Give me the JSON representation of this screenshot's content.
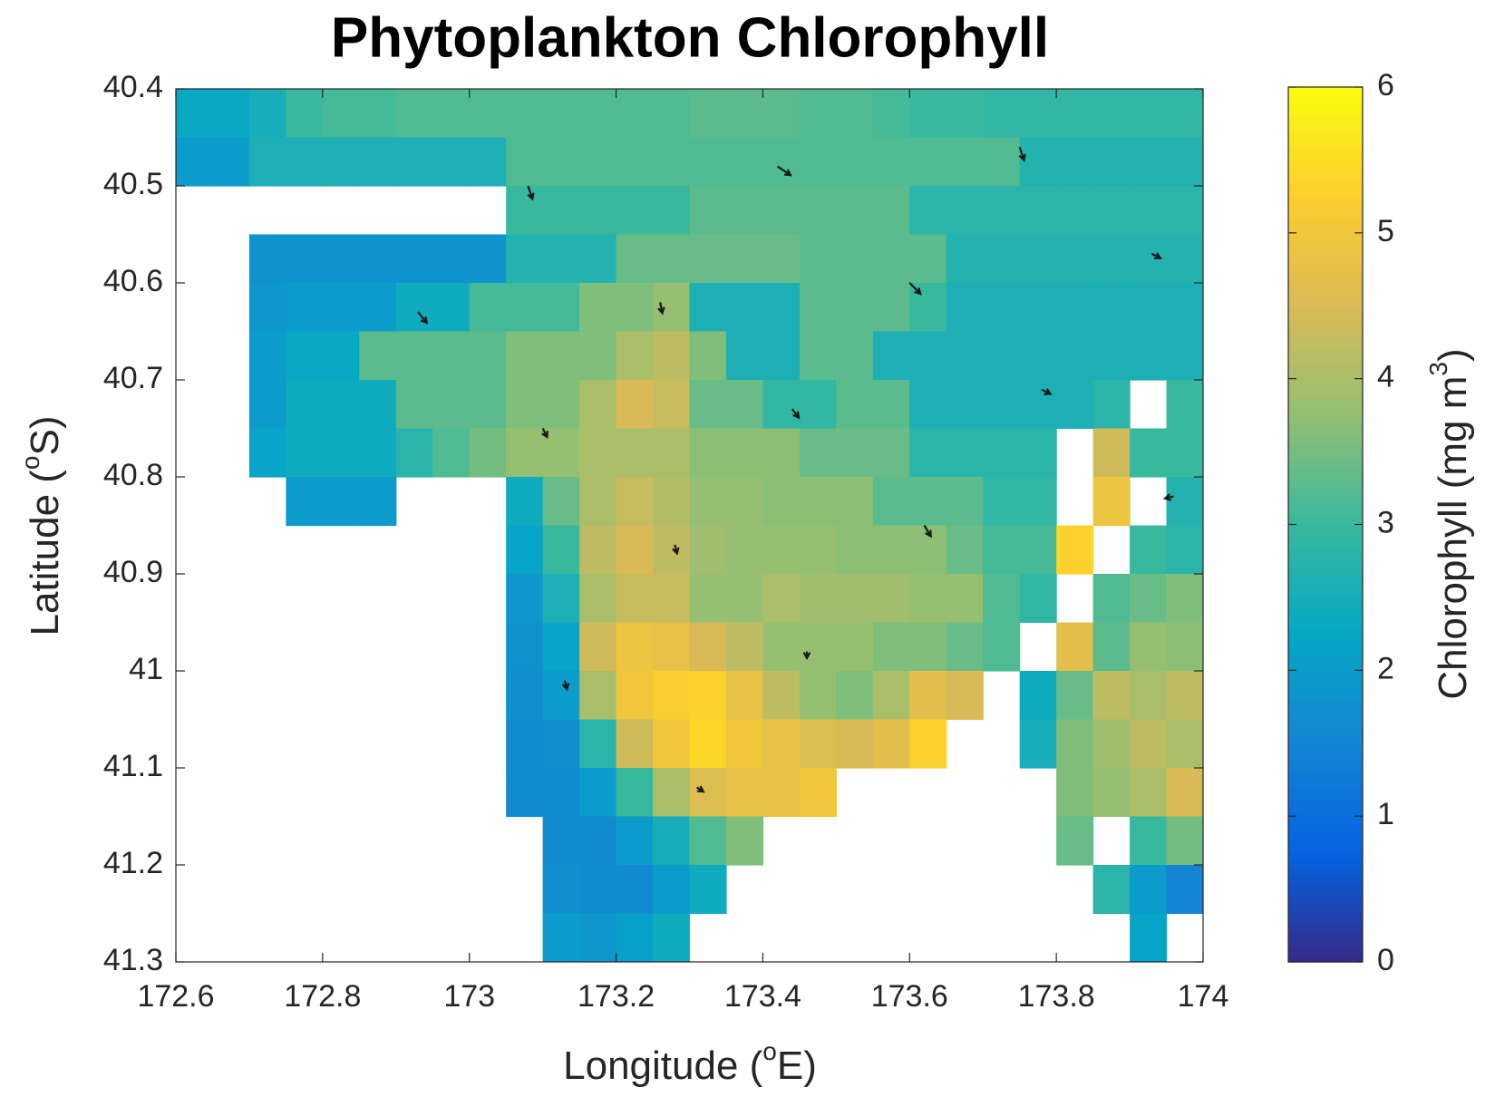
{
  "chart_data": {
    "type": "heatmap",
    "title": "Phytoplankton Chlorophyll",
    "xlabel": [
      "Longitude (",
      "o",
      "E)"
    ],
    "ylabel": [
      "Latitude (",
      "o",
      "S)"
    ],
    "colorbar_label": [
      "Chlorophyll (mg m",
      "3",
      ")"
    ],
    "x": [
      172.625,
      172.675,
      172.725,
      172.775,
      172.825,
      172.875,
      172.925,
      172.975,
      173.025,
      173.075,
      173.125,
      173.175,
      173.225,
      173.275,
      173.325,
      173.375,
      173.425,
      173.475,
      173.525,
      173.575,
      173.625,
      173.675,
      173.725,
      173.775,
      173.825,
      173.875,
      173.925,
      173.975
    ],
    "y": [
      40.425,
      40.475,
      40.525,
      40.575,
      40.625,
      40.675,
      40.725,
      40.775,
      40.825,
      40.875,
      40.925,
      40.975,
      41.025,
      41.075,
      41.125,
      41.175,
      41.225,
      41.275
    ],
    "values": [
      [
        2.3,
        2.3,
        2.5,
        3.0,
        3.1,
        3.1,
        3.2,
        3.2,
        3.2,
        3.2,
        3.2,
        3.2,
        3.2,
        3.2,
        3.3,
        3.3,
        3.3,
        3.2,
        3.2,
        3.1,
        3.0,
        3.0,
        2.9,
        2.9,
        2.9,
        2.9,
        2.9,
        2.9
      ],
      [
        2.0,
        2.0,
        2.6,
        2.6,
        2.6,
        2.6,
        2.6,
        2.6,
        2.6,
        3.2,
        3.2,
        3.2,
        3.2,
        3.2,
        3.2,
        3.2,
        3.2,
        3.2,
        3.2,
        3.2,
        3.2,
        3.2,
        3.2,
        2.7,
        2.7,
        2.7,
        2.7,
        2.7
      ],
      [
        null,
        null,
        null,
        null,
        null,
        null,
        null,
        null,
        null,
        3.0,
        3.0,
        3.0,
        3.0,
        3.0,
        3.3,
        3.3,
        3.3,
        3.3,
        3.3,
        3.3,
        2.8,
        2.8,
        2.8,
        2.8,
        2.8,
        2.8,
        2.8,
        2.8
      ],
      [
        null,
        null,
        1.8,
        1.8,
        1.8,
        1.8,
        1.8,
        1.8,
        1.8,
        2.7,
        2.7,
        2.7,
        3.4,
        3.4,
        3.4,
        3.4,
        3.4,
        3.3,
        3.3,
        3.3,
        3.3,
        2.7,
        2.7,
        2.7,
        2.7,
        2.7,
        2.7,
        2.7
      ],
      [
        null,
        null,
        1.9,
        2.0,
        2.0,
        2.0,
        2.4,
        2.4,
        3.1,
        3.1,
        3.1,
        3.6,
        3.6,
        3.8,
        2.6,
        2.6,
        2.6,
        3.3,
        3.3,
        3.3,
        3.0,
        2.6,
        2.6,
        2.6,
        2.6,
        2.6,
        2.6,
        2.6
      ],
      [
        null,
        null,
        2.0,
        2.3,
        2.3,
        3.3,
        3.3,
        3.3,
        3.3,
        3.6,
        3.6,
        3.6,
        4.0,
        4.2,
        3.6,
        2.6,
        2.6,
        3.3,
        3.3,
        2.6,
        2.6,
        2.6,
        2.6,
        2.6,
        2.6,
        2.6,
        2.6,
        2.6
      ],
      [
        null,
        null,
        2.0,
        2.4,
        2.4,
        2.4,
        3.3,
        3.3,
        3.3,
        3.6,
        3.6,
        4.0,
        4.5,
        4.3,
        3.4,
        3.4,
        2.9,
        2.9,
        3.3,
        3.3,
        2.6,
        2.6,
        2.6,
        2.6,
        2.6,
        2.8,
        null,
        3.0
      ],
      [
        null,
        null,
        2.2,
        2.4,
        2.4,
        2.4,
        2.8,
        3.2,
        3.5,
        3.8,
        3.8,
        4.0,
        4.0,
        4.0,
        3.7,
        3.7,
        3.7,
        3.4,
        3.4,
        3.4,
        2.8,
        2.8,
        2.8,
        2.8,
        null,
        4.4,
        3.0,
        3.0
      ],
      [
        null,
        null,
        null,
        2.0,
        2.0,
        2.0,
        null,
        null,
        null,
        2.4,
        3.4,
        4.0,
        4.3,
        4.1,
        3.8,
        3.8,
        3.7,
        3.7,
        3.7,
        3.3,
        3.3,
        3.3,
        2.9,
        2.9,
        null,
        4.9,
        null,
        2.7
      ],
      [
        null,
        null,
        null,
        null,
        null,
        null,
        null,
        null,
        null,
        2.2,
        3.0,
        4.2,
        4.5,
        4.2,
        3.9,
        3.8,
        3.8,
        3.8,
        3.7,
        3.7,
        3.7,
        3.4,
        3.1,
        3.1,
        5.3,
        null,
        3.0,
        2.8
      ],
      [
        null,
        null,
        null,
        null,
        null,
        null,
        null,
        null,
        null,
        1.9,
        2.6,
        4.0,
        4.3,
        4.3,
        3.8,
        3.8,
        4.0,
        3.9,
        3.9,
        3.9,
        3.8,
        3.8,
        3.2,
        2.9,
        null,
        3.2,
        3.4,
        3.6
      ],
      [
        null,
        null,
        null,
        null,
        null,
        null,
        null,
        null,
        null,
        1.8,
        2.2,
        4.4,
        4.9,
        4.8,
        4.5,
        4.2,
        3.8,
        3.8,
        3.8,
        3.6,
        3.6,
        3.4,
        3.2,
        null,
        4.7,
        3.3,
        3.8,
        3.7
      ],
      [
        null,
        null,
        null,
        null,
        null,
        null,
        null,
        null,
        null,
        1.7,
        2.0,
        4.0,
        5.0,
        5.2,
        5.3,
        4.8,
        4.2,
        3.8,
        3.6,
        4.0,
        4.7,
        4.5,
        null,
        2.4,
        3.4,
        4.2,
        4.0,
        4.2
      ],
      [
        null,
        null,
        null,
        null,
        null,
        null,
        null,
        null,
        null,
        1.6,
        1.7,
        2.8,
        4.4,
        5.0,
        5.4,
        5.0,
        4.8,
        4.6,
        4.5,
        4.7,
        5.3,
        null,
        null,
        2.5,
        3.6,
        3.9,
        4.2,
        4.0
      ],
      [
        null,
        null,
        null,
        null,
        null,
        null,
        null,
        null,
        null,
        1.6,
        1.6,
        2.0,
        3.0,
        4.0,
        4.6,
        4.8,
        4.8,
        5.0,
        null,
        null,
        null,
        null,
        null,
        null,
        3.6,
        3.8,
        4.0,
        4.5
      ],
      [
        null,
        null,
        null,
        null,
        null,
        null,
        null,
        null,
        null,
        null,
        1.6,
        1.6,
        2.0,
        2.5,
        3.2,
        3.6,
        null,
        null,
        null,
        null,
        null,
        null,
        null,
        null,
        3.4,
        null,
        3.0,
        3.5
      ],
      [
        null,
        null,
        null,
        null,
        null,
        null,
        null,
        null,
        null,
        null,
        1.7,
        1.6,
        1.6,
        2.0,
        2.4,
        null,
        null,
        null,
        null,
        null,
        null,
        null,
        null,
        null,
        null,
        2.8,
        2.0,
        1.5
      ],
      [
        null,
        null,
        null,
        null,
        null,
        null,
        null,
        null,
        null,
        null,
        2.0,
        1.9,
        2.1,
        2.4,
        null,
        null,
        null,
        null,
        null,
        null,
        null,
        null,
        null,
        null,
        null,
        null,
        2.2,
        null
      ]
    ],
    "xlim": [
      172.6,
      174
    ],
    "ylim": [
      40.4,
      41.3
    ],
    "xticks": [
      172.6,
      172.8,
      173,
      173.2,
      173.4,
      173.6,
      173.8,
      174
    ],
    "yticks": [
      40.4,
      40.5,
      40.6,
      40.7,
      40.8,
      40.9,
      41,
      41.1,
      41.2,
      41.3
    ],
    "clim": [
      0,
      6
    ],
    "cticks": [
      0,
      1,
      2,
      3,
      4,
      5,
      6
    ],
    "colormap": [
      "#352a87",
      "#0363e1",
      "#1485d4",
      "#06a7c6",
      "#38b99e",
      "#92bf73",
      "#d9ba56",
      "#fcce2e",
      "#f9fb0e"
    ],
    "quiver": {
      "x": [
        173.08,
        173.42,
        173.75,
        173.93,
        173.6,
        173.26,
        172.93,
        173.78,
        173.44,
        173.1,
        173.28,
        173.62,
        173.96,
        173.46,
        173.13,
        173.31
      ],
      "y": [
        40.5,
        40.48,
        40.46,
        40.57,
        40.6,
        40.62,
        40.63,
        40.71,
        40.73,
        40.75,
        40.87,
        40.85,
        40.82,
        40.98,
        41.01,
        41.12
      ],
      "u": [
        0.2,
        0.6,
        0.2,
        0.4,
        0.5,
        0.1,
        0.4,
        0.4,
        0.3,
        0.2,
        0.1,
        0.3,
        -0.4,
        0.0,
        0.1,
        0.3
      ],
      "v": [
        0.6,
        0.4,
        0.6,
        0.2,
        0.5,
        0.5,
        0.5,
        0.2,
        0.4,
        0.4,
        0.4,
        0.5,
        0.1,
        0.3,
        0.4,
        0.2
      ],
      "color": "#1a1a1a"
    }
  }
}
